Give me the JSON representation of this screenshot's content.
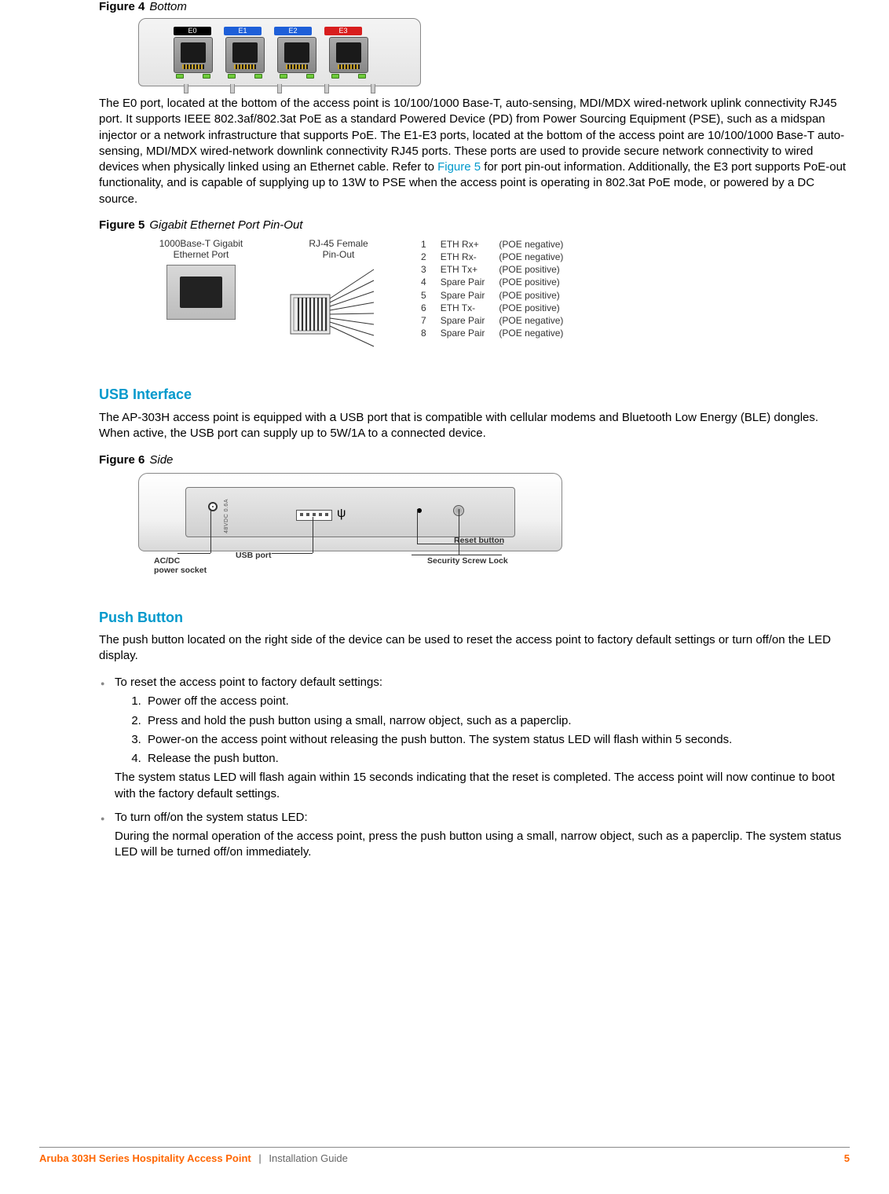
{
  "figure4": {
    "label": "Figure 4",
    "title": "Bottom"
  },
  "ports": {
    "labels": [
      "E0",
      "E1",
      "E2",
      "E3"
    ],
    "colors": [
      "#000000",
      "#1e5fd8",
      "#1e5fd8",
      "#d81e1e"
    ]
  },
  "para1a": "The E0 port, located at the bottom of the access point is 10/100/1000 Base-T, auto-sensing, MDI/MDX wired-network uplink connectivity RJ45 port. It supports IEEE 802.3af/802.3at PoE as a standard Powered Device (PD) from Power Sourcing Equipment (PSE), such as a midspan injector or a network infrastructure that supports PoE. The E1-E3 ports, located at the bottom of the access point are 10/100/1000 Base-T auto-sensing, MDI/MDX wired-network downlink connectivity RJ45 ports. These ports are used to provide secure network connectivity to wired devices when physically linked using an Ethernet cable. Refer to ",
  "para1link": "Figure 5",
  "para1b": " for port pin-out information. Additionally, the E3 port supports PoE-out functionality, and is capable of supplying up to 13W to PSE when the access point is operating in 802.3at PoE mode, or powered by a DC source.",
  "figure5": {
    "label": "Figure 5",
    "title": "Gigabit Ethernet Port Pin-Out"
  },
  "pinout": {
    "col1_l1": "1000Base-T Gigabit",
    "col1_l2": "Ethernet Port",
    "col2_l1": "RJ-45 Female",
    "col2_l2": "Pin-Out",
    "rows": [
      {
        "n": "1",
        "sig": "ETH Rx+",
        "poe": "(POE negative)"
      },
      {
        "n": "2",
        "sig": "ETH Rx-",
        "poe": "(POE negative)"
      },
      {
        "n": "3",
        "sig": "ETH Tx+",
        "poe": "(POE positive)"
      },
      {
        "n": "4",
        "sig": "Spare Pair",
        "poe": "(POE positive)"
      },
      {
        "n": "5",
        "sig": "Spare Pair",
        "poe": "(POE positive)"
      },
      {
        "n": "6",
        "sig": "ETH Tx-",
        "poe": "(POE positive)"
      },
      {
        "n": "7",
        "sig": "Spare Pair",
        "poe": "(POE negative)"
      },
      {
        "n": "8",
        "sig": "Spare Pair",
        "poe": "(POE negative)"
      }
    ]
  },
  "usb": {
    "heading": "USB Interface",
    "para_a": "The AP-303H access point is equipped with ",
    "para_mid": "a",
    "para_b": " USB port that is compatible with cellular modems and Bluetooth Low Energy (BLE) dongles. When active, the USB port can supply up to 5W/1A to a connected device."
  },
  "figure6": {
    "label": "Figure 6",
    "title": "Side",
    "vtext": "48VDC 0.6A",
    "callouts": {
      "ac": "AC/DC",
      "ac2": "power socket",
      "usb": "USB port",
      "reset": "Reset button",
      "screw": "Security Screw Lock"
    },
    "usb_symbol": "ψ"
  },
  "push": {
    "heading": "Push Button",
    "intro": "The push button located on the right side of the device can be used to reset the access point to factory default settings or turn off/on the LED display.",
    "b1": "To reset the access point to factory default settings:",
    "steps": [
      "Power off the access point.",
      "Press and hold the push button using a small, narrow object, such as a paperclip.",
      "Power-on the access point without releasing the push button. The system status LED will flash within 5 seconds.",
      "Release the push button."
    ],
    "after": "The system status LED will flash again within 15 seconds indicating that the reset is completed. The access point will now continue to boot with the factory default settings.",
    "b2": "To turn off/on the system status LED:",
    "b2p": "During the normal operation of the access point, press the push button using a small, narrow object, such as a paperclip. The system status LED will be turned off/on immediately."
  },
  "footer": {
    "product": "Aruba 303H Series Hospitality Access Point",
    "guide": "Installation Guide",
    "page": "5"
  }
}
